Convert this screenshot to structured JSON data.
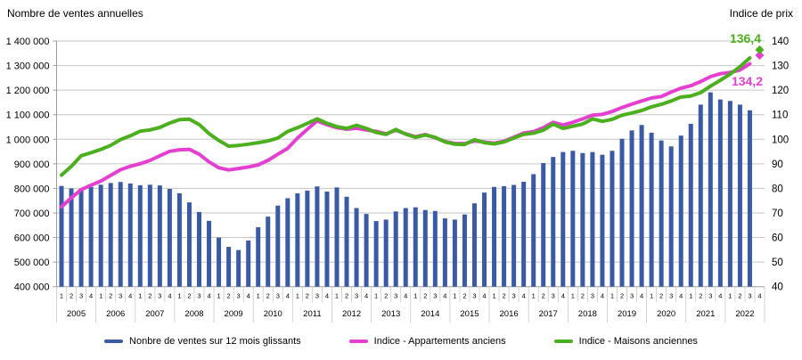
{
  "titles": {
    "left_axis": "Nombre de ventes annuelles",
    "right_axis": "Indice de prix"
  },
  "end_labels": {
    "maisons": "136,4",
    "appartements": "134,2"
  },
  "colors": {
    "bars": "#3B5AA5",
    "apartments": "#E53FD2",
    "houses": "#4CAF1E",
    "gridline": "#C6C6C6",
    "axis": "#9E9E9E",
    "separator": "#C9C9C9"
  },
  "legend": {
    "items": [
      {
        "name": "sales",
        "label": "Nonbre de ventes sur 12 mois glissants",
        "color": "#3B5AA5"
      },
      {
        "name": "apartments",
        "label": "Indice - Appartements anciens",
        "color": "#E53FD2"
      },
      {
        "name": "houses",
        "label": "Indice - Maisons anciennes",
        "color": "#4CAF1E"
      }
    ]
  },
  "chart_data": {
    "type": "combo-bar-line",
    "title": "",
    "grid": true,
    "legend_position": "bottom",
    "years": [
      "2005",
      "2006",
      "2007",
      "2008",
      "2009",
      "2010",
      "2011",
      "2012",
      "2013",
      "2014",
      "2015",
      "2016",
      "2017",
      "2018",
      "2019",
      "2020",
      "2021",
      "2022"
    ],
    "quarter_labels": [
      "1",
      "2",
      "3",
      "4"
    ],
    "left_axis": {
      "title": "Nombre de ventes annuelles",
      "min": 400000,
      "max": 1400000,
      "step": 100000,
      "tick_labels": [
        "1 400 000",
        "1 300 000",
        "1 200 000",
        "1 100 000",
        "1 000 000",
        "900 000",
        "800 000",
        "700 000",
        "600 000",
        "500 000",
        "400 000"
      ]
    },
    "right_axis": {
      "title": "Indice de prix",
      "min": 40,
      "max": 140,
      "step": 10,
      "tick_labels": [
        "140",
        "130",
        "120",
        "110",
        "100",
        "90",
        "80",
        "70",
        "60",
        "50",
        "40"
      ]
    },
    "series": [
      {
        "name": "Nonbre de ventes sur 12 mois glissants",
        "type": "bar",
        "axis": "left",
        "color": "#3B5AA5",
        "values": [
          810000,
          800000,
          800000,
          806000,
          815000,
          822000,
          826000,
          820000,
          813000,
          815000,
          812000,
          798000,
          780000,
          743000,
          704000,
          668000,
          600000,
          562000,
          549000,
          588000,
          642000,
          685000,
          730000,
          760000,
          780000,
          791000,
          808000,
          787000,
          804000,
          766000,
          720000,
          696000,
          667000,
          673000,
          706000,
          720000,
          723000,
          712000,
          708000,
          678000,
          673000,
          694000,
          739000,
          783000,
          806000,
          809000,
          814000,
          827000,
          858000,
          903000,
          928000,
          948000,
          953000,
          944000,
          948000,
          937000,
          953000,
          1002000,
          1036000,
          1058000,
          1027000,
          995000,
          971000,
          1015000,
          1063000,
          1141000,
          1191000,
          1162000,
          1156000,
          1141000,
          1118000,
          null
        ]
      },
      {
        "name": "Indice - Appartements anciens",
        "type": "line",
        "axis": "right",
        "color": "#E53FD2",
        "last_point_marker": "diamond",
        "last_value_label": "134,2",
        "values": [
          72.5,
          76.2,
          79.5,
          81.3,
          83.0,
          85.3,
          87.6,
          89.0,
          90.0,
          91.4,
          93.3,
          95.1,
          95.7,
          95.9,
          93.9,
          90.8,
          88.4,
          87.5,
          88.1,
          88.7,
          89.6,
          91.4,
          93.9,
          96.3,
          100.5,
          104.1,
          107.5,
          105.9,
          104.7,
          104.1,
          104.5,
          103.8,
          103.2,
          102.2,
          103.7,
          102.2,
          101.0,
          101.9,
          100.6,
          99.1,
          98.3,
          98.2,
          99.3,
          98.9,
          98.4,
          99.2,
          100.8,
          102.5,
          103.1,
          104.7,
          106.9,
          105.8,
          106.9,
          108.3,
          109.8,
          110.1,
          111.3,
          112.9,
          114.3,
          115.6,
          116.8,
          117.4,
          119.2,
          120.8,
          121.8,
          123.5,
          125.5,
          126.7,
          127.2,
          128.2,
          130.7,
          134.2
        ]
      },
      {
        "name": "Indice - Maisons anciennes",
        "type": "line",
        "axis": "right",
        "color": "#4CAF1E",
        "last_point_marker": "diamond",
        "last_value_label": "136,4",
        "values": [
          85.4,
          89.0,
          93.3,
          94.5,
          95.9,
          97.5,
          99.9,
          101.4,
          103.3,
          103.8,
          104.8,
          106.6,
          108.0,
          108.2,
          106.0,
          102.3,
          99.5,
          97.2,
          97.5,
          98.0,
          98.6,
          99.3,
          100.5,
          103.2,
          104.7,
          106.5,
          108.3,
          106.5,
          105.1,
          104.4,
          105.7,
          104.4,
          102.8,
          102.0,
          104.0,
          102.1,
          100.8,
          101.7,
          100.8,
          98.9,
          98.0,
          97.9,
          99.8,
          98.6,
          98.1,
          98.9,
          100.5,
          102.0,
          102.5,
          103.7,
          106.2,
          104.4,
          105.3,
          106.2,
          108.3,
          107.3,
          108.1,
          109.8,
          110.7,
          111.7,
          113.2,
          114.2,
          115.6,
          117.2,
          117.6,
          119.0,
          121.6,
          124.0,
          126.5,
          129.5,
          133.1,
          136.4
        ]
      }
    ]
  }
}
